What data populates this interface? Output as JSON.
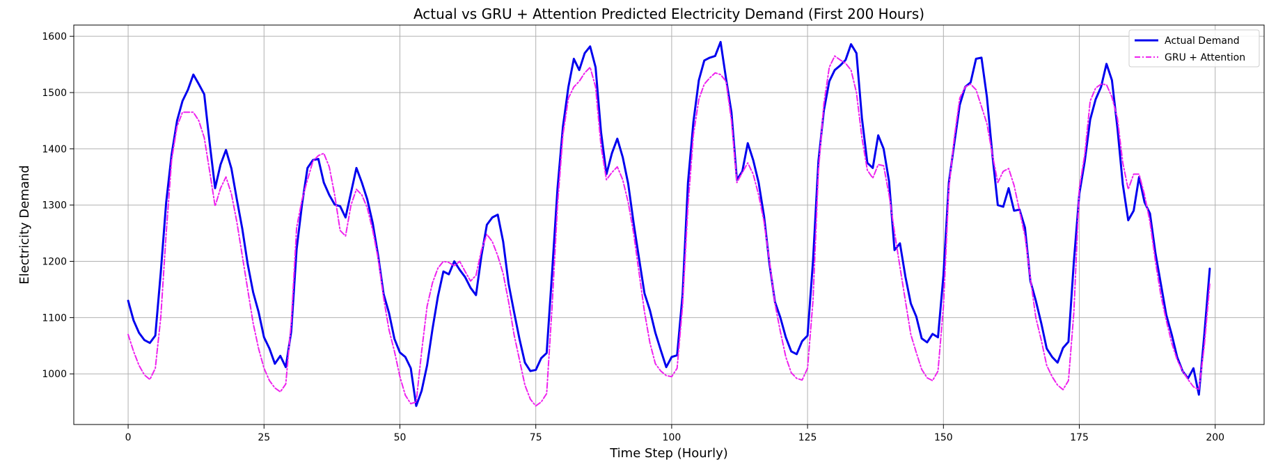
{
  "chart_data": {
    "type": "line",
    "title": "Actual vs GRU + Attention Predicted Electricity Demand (First 200 Hours)",
    "xlabel": "Time Step (Hourly)",
    "ylabel": "Electricity Demand",
    "xlim": [
      -10,
      209
    ],
    "ylim": [
      910,
      1620
    ],
    "xticks": [
      0,
      25,
      50,
      75,
      100,
      125,
      150,
      175,
      200
    ],
    "yticks": [
      1000,
      1100,
      1200,
      1300,
      1400,
      1500,
      1600
    ],
    "grid": true,
    "legend_position": "top-right",
    "series": [
      {
        "name": "Actual Demand",
        "color": "#0000ee",
        "style": "solid",
        "values": [
          1130,
          1095,
          1073,
          1060,
          1055,
          1068,
          1180,
          1305,
          1390,
          1450,
          1485,
          1505,
          1532,
          1515,
          1497,
          1410,
          1330,
          1372,
          1398,
          1365,
          1310,
          1258,
          1195,
          1145,
          1110,
          1065,
          1045,
          1018,
          1032,
          1012,
          1075,
          1222,
          1302,
          1366,
          1380,
          1382,
          1340,
          1318,
          1301,
          1298,
          1278,
          1322,
          1366,
          1340,
          1310,
          1268,
          1210,
          1142,
          1108,
          1062,
          1038,
          1030,
          1010,
          943,
          970,
          1015,
          1080,
          1138,
          1182,
          1177,
          1200,
          1185,
          1172,
          1153,
          1140,
          1210,
          1265,
          1278,
          1283,
          1235,
          1160,
          1110,
          1062,
          1020,
          1005,
          1007,
          1028,
          1037,
          1180,
          1330,
          1440,
          1510,
          1560,
          1540,
          1570,
          1582,
          1545,
          1430,
          1355,
          1392,
          1418,
          1385,
          1338,
          1268,
          1205,
          1143,
          1113,
          1073,
          1042,
          1012,
          1030,
          1033,
          1140,
          1340,
          1448,
          1522,
          1557,
          1562,
          1565,
          1590,
          1525,
          1465,
          1345,
          1360,
          1410,
          1380,
          1340,
          1280,
          1195,
          1128,
          1100,
          1065,
          1040,
          1035,
          1058,
          1068,
          1200,
          1378,
          1468,
          1520,
          1540,
          1548,
          1558,
          1586,
          1570,
          1455,
          1375,
          1366,
          1424,
          1400,
          1342,
          1220,
          1232,
          1173,
          1125,
          1102,
          1063,
          1056,
          1071,
          1065,
          1175,
          1340,
          1410,
          1478,
          1510,
          1518,
          1560,
          1562,
          1492,
          1390,
          1300,
          1297,
          1330,
          1290,
          1292,
          1260,
          1165,
          1130,
          1090,
          1045,
          1030,
          1020,
          1046,
          1057,
          1200,
          1320,
          1378,
          1452,
          1488,
          1510,
          1551,
          1522,
          1438,
          1337,
          1273,
          1290,
          1350,
          1305,
          1285,
          1215,
          1160,
          1105,
          1070,
          1030,
          1005,
          992,
          1010,
          963,
          1070,
          1187
        ]
      },
      {
        "name": "GRU + Attention",
        "color": "#ee22ee",
        "style": "dashdot",
        "values": [
          1070,
          1040,
          1015,
          998,
          990,
          1010,
          1100,
          1250,
          1380,
          1440,
          1465,
          1465,
          1465,
          1450,
          1420,
          1360,
          1298,
          1330,
          1350,
          1320,
          1270,
          1210,
          1150,
          1090,
          1045,
          1010,
          988,
          975,
          968,
          982,
          1090,
          1260,
          1310,
          1345,
          1378,
          1388,
          1392,
          1368,
          1318,
          1255,
          1245,
          1300,
          1328,
          1318,
          1295,
          1255,
          1205,
          1135,
          1078,
          1040,
          995,
          962,
          947,
          950,
          1040,
          1120,
          1162,
          1188,
          1200,
          1198,
          1192,
          1200,
          1182,
          1165,
          1175,
          1220,
          1248,
          1235,
          1210,
          1178,
          1128,
          1070,
          1025,
          980,
          955,
          943,
          950,
          965,
          1120,
          1300,
          1425,
          1490,
          1510,
          1520,
          1535,
          1545,
          1510,
          1405,
          1345,
          1358,
          1368,
          1345,
          1305,
          1250,
          1180,
          1110,
          1055,
          1018,
          1005,
          997,
          995,
          1010,
          1120,
          1298,
          1425,
          1488,
          1515,
          1526,
          1535,
          1532,
          1520,
          1450,
          1340,
          1358,
          1375,
          1355,
          1318,
          1270,
          1200,
          1125,
          1075,
          1030,
          1002,
          992,
          989,
          1010,
          1130,
          1360,
          1480,
          1545,
          1565,
          1558,
          1552,
          1540,
          1500,
          1420,
          1362,
          1348,
          1372,
          1370,
          1318,
          1252,
          1190,
          1130,
          1070,
          1038,
          1008,
          993,
          988,
          1005,
          1120,
          1330,
          1420,
          1490,
          1510,
          1515,
          1505,
          1475,
          1445,
          1390,
          1340,
          1360,
          1365,
          1335,
          1290,
          1245,
          1170,
          1100,
          1060,
          1015,
          995,
          980,
          972,
          988,
          1110,
          1330,
          1390,
          1485,
          1508,
          1515,
          1514,
          1492,
          1455,
          1375,
          1328,
          1355,
          1355,
          1318,
          1270,
          1200,
          1140,
          1095,
          1055,
          1025,
          1005,
          990,
          977,
          972,
          1050,
          1160
        ]
      }
    ]
  }
}
